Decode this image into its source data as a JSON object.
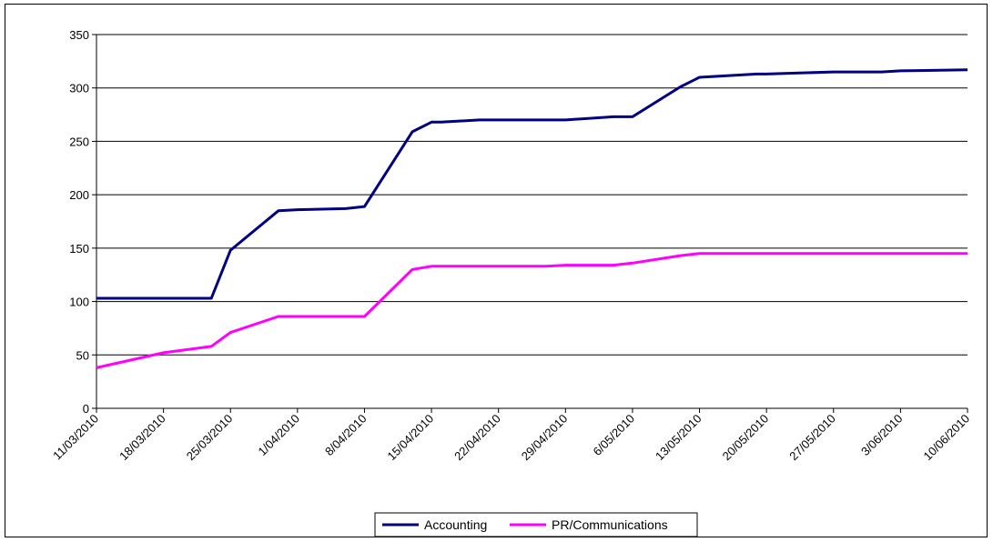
{
  "chart_data": {
    "type": "line",
    "title": "",
    "xlabel": "",
    "ylabel": "",
    "ylim": [
      0,
      350
    ],
    "y_ticks": [
      0,
      50,
      100,
      150,
      200,
      250,
      300,
      350
    ],
    "grid": "horizontal",
    "legend_position": "bottom",
    "x_tick_labels": [
      "11/03/2010",
      "18/03/2010",
      "25/03/2010",
      "1/04/2010",
      "8/04/2010",
      "15/04/2010",
      "22/04/2010",
      "29/04/2010",
      "6/05/2010",
      "13/05/2010",
      "20/05/2010",
      "27/05/2010",
      "3/06/2010",
      "10/06/2010"
    ],
    "xlim": [
      "2010-03-11",
      "2010-06-10"
    ],
    "series": [
      {
        "name": "Accounting",
        "color": "#000080",
        "points": [
          [
            "2010-03-11",
            103
          ],
          [
            "2010-03-18",
            103
          ],
          [
            "2010-03-23",
            103
          ],
          [
            "2010-03-25",
            148
          ],
          [
            "2010-03-30",
            185
          ],
          [
            "2010-04-01",
            186
          ],
          [
            "2010-04-06",
            187
          ],
          [
            "2010-04-08",
            189
          ],
          [
            "2010-04-13",
            259
          ],
          [
            "2010-04-15",
            268
          ],
          [
            "2010-04-16",
            268
          ],
          [
            "2010-04-20",
            270
          ],
          [
            "2010-04-29",
            270
          ],
          [
            "2010-05-04",
            273
          ],
          [
            "2010-05-06",
            273
          ],
          [
            "2010-05-11",
            301
          ],
          [
            "2010-05-13",
            310
          ],
          [
            "2010-05-19",
            313
          ],
          [
            "2010-05-20",
            313
          ],
          [
            "2010-05-27",
            315
          ],
          [
            "2010-06-01",
            315
          ],
          [
            "2010-06-03",
            316
          ],
          [
            "2010-06-10",
            317
          ]
        ]
      },
      {
        "name": "PR/Communications",
        "color": "#ff00ff",
        "points": [
          [
            "2010-03-11",
            38
          ],
          [
            "2010-03-18",
            52
          ],
          [
            "2010-03-23",
            58
          ],
          [
            "2010-03-25",
            71
          ],
          [
            "2010-03-30",
            86
          ],
          [
            "2010-04-01",
            86
          ],
          [
            "2010-04-06",
            86
          ],
          [
            "2010-04-08",
            86
          ],
          [
            "2010-04-13",
            130
          ],
          [
            "2010-04-15",
            133
          ],
          [
            "2010-04-20",
            133
          ],
          [
            "2010-04-27",
            133
          ],
          [
            "2010-04-29",
            134
          ],
          [
            "2010-05-04",
            134
          ],
          [
            "2010-05-06",
            136
          ],
          [
            "2010-05-11",
            143
          ],
          [
            "2010-05-13",
            145
          ],
          [
            "2010-06-10",
            145
          ]
        ]
      }
    ]
  }
}
